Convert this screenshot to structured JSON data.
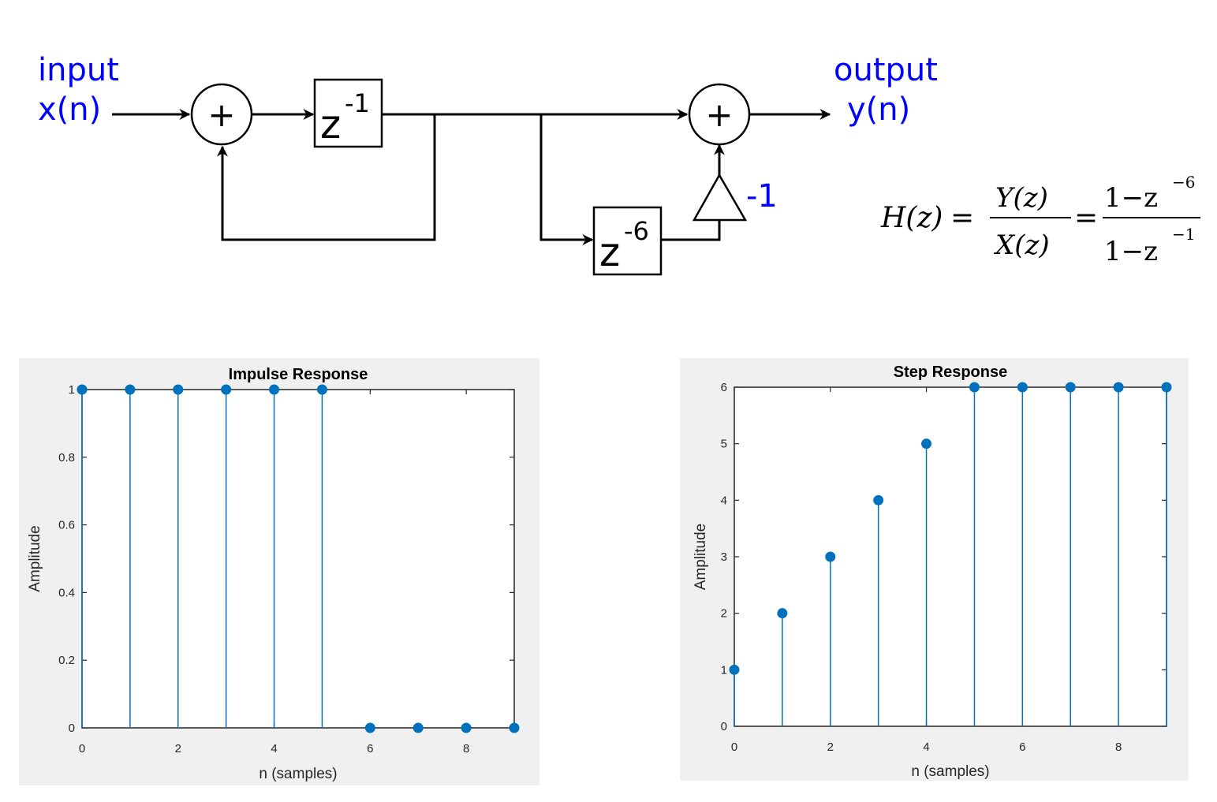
{
  "diagram": {
    "input_label": "input",
    "input_signal": "x(n)",
    "output_label": "output",
    "output_signal": "y(n)",
    "delay1": {
      "base": "z",
      "exp": "-1"
    },
    "delay6": {
      "base": "z",
      "exp": "-6"
    },
    "gain": "-1",
    "adder_symbol": "+",
    "transfer_function": {
      "lhs": "H(z)",
      "ratio_num": "Y(z)",
      "ratio_den": "X(z)",
      "num": "1−z",
      "num_exp": "−6",
      "den": "1−z",
      "den_exp": "−1"
    }
  },
  "chart_data": [
    {
      "type": "stem",
      "title": "Impulse Response",
      "xlabel": "n (samples)",
      "ylabel": "Amplitude",
      "x": [
        0,
        1,
        2,
        3,
        4,
        5,
        6,
        7,
        8,
        9
      ],
      "values": [
        1,
        1,
        1,
        1,
        1,
        1,
        0,
        0,
        0,
        0
      ],
      "xlim": [
        0,
        9
      ],
      "ylim": [
        0,
        1
      ],
      "xticks": [
        "0",
        "2",
        "4",
        "6",
        "8"
      ],
      "yticks": [
        "0",
        "0.2",
        "0.4",
        "0.6",
        "0.8",
        "1"
      ],
      "grid": false,
      "color": "#0072bd"
    },
    {
      "type": "stem",
      "title": "Step Response",
      "xlabel": "n (samples)",
      "ylabel": "Amplitude",
      "x": [
        0,
        1,
        2,
        3,
        4,
        5,
        6,
        7,
        8,
        9
      ],
      "values": [
        1,
        2,
        3,
        4,
        5,
        6,
        6,
        6,
        6,
        6
      ],
      "xlim": [
        0,
        9
      ],
      "ylim": [
        0,
        6
      ],
      "xticks": [
        "0",
        "2",
        "4",
        "6",
        "8"
      ],
      "yticks": [
        "0",
        "1",
        "2",
        "3",
        "4",
        "5",
        "6"
      ],
      "grid": false,
      "color": "#0072bd"
    }
  ]
}
